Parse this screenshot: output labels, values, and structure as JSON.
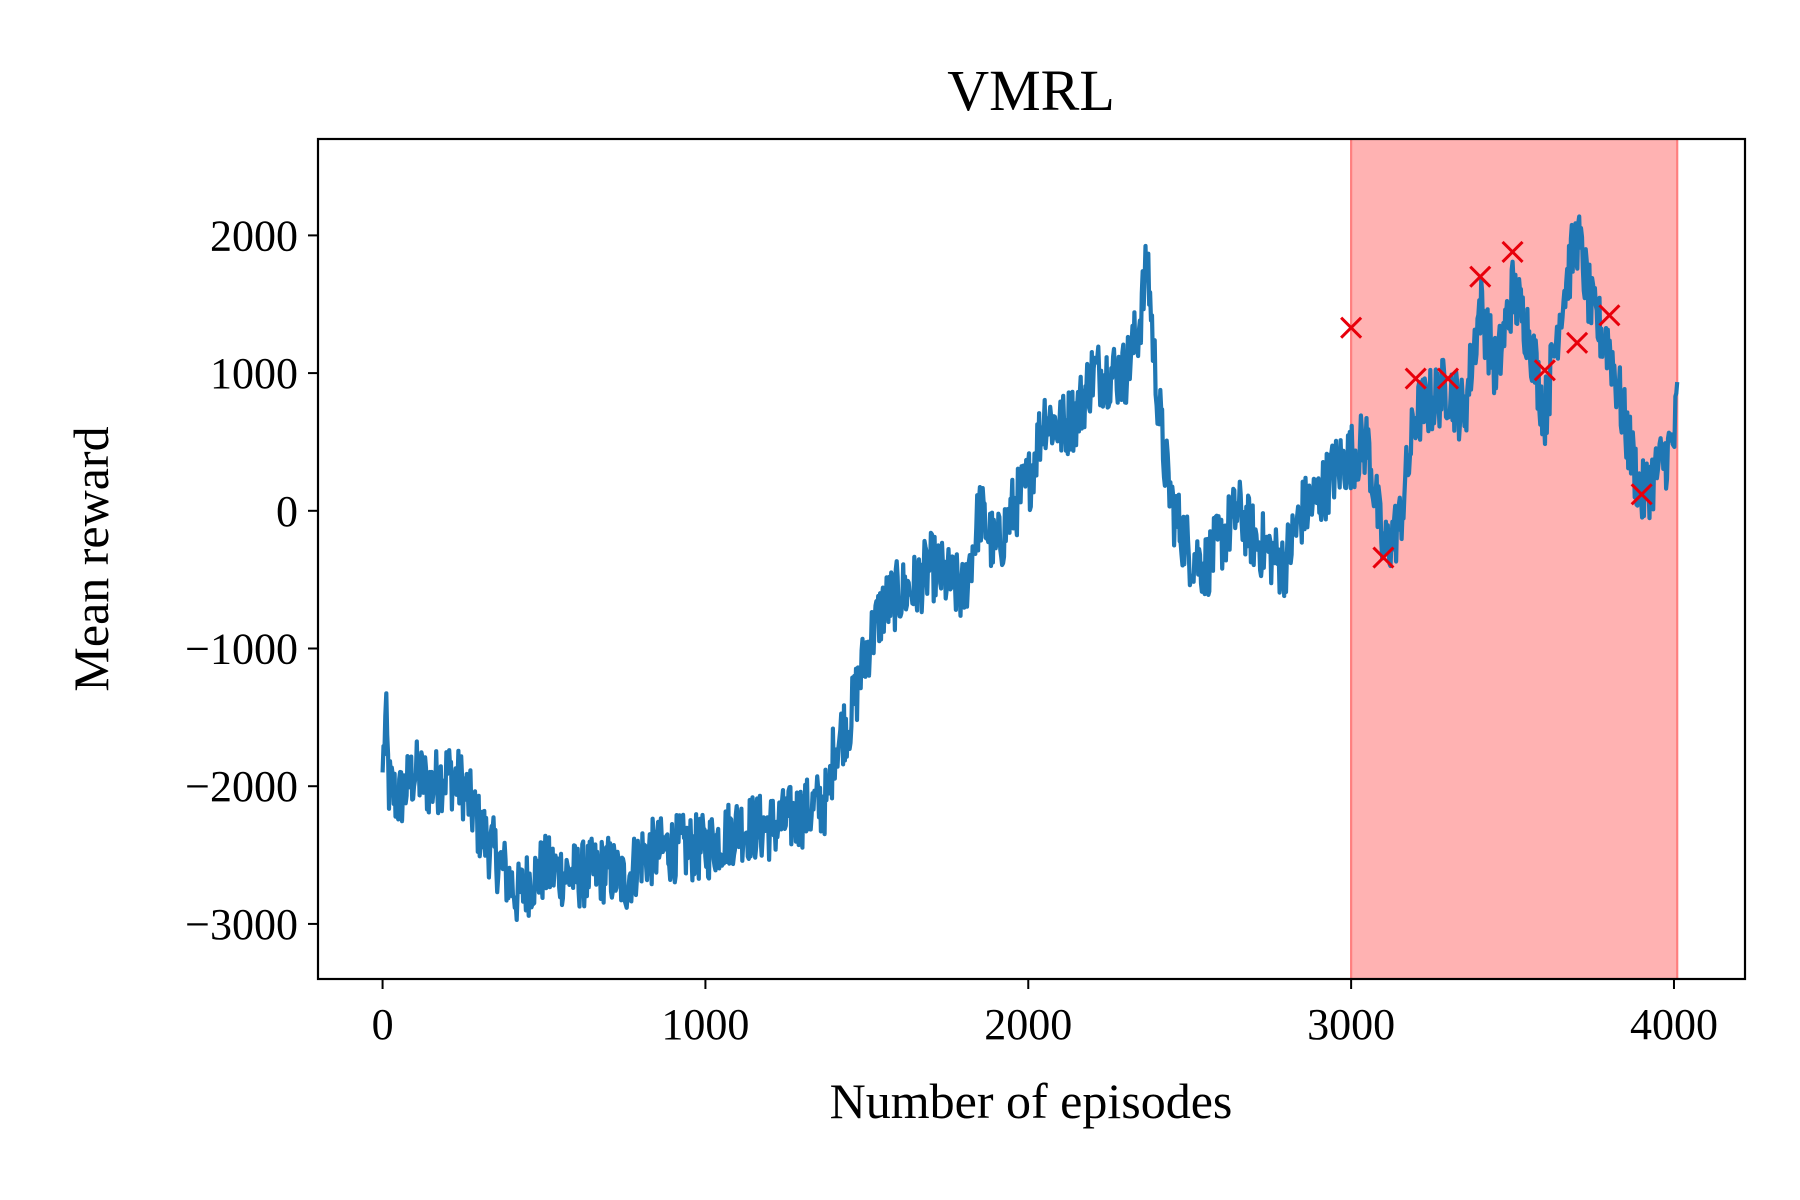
{
  "chart_data": {
    "type": "line",
    "title": "VMRL",
    "xlabel": "Number of episodes",
    "ylabel": "Mean reward",
    "xlim": [
      -200,
      4220
    ],
    "ylim": [
      -3400,
      2700
    ],
    "xticks": [
      0,
      1000,
      2000,
      3000,
      4000
    ],
    "xtick_labels": [
      "0",
      "1000",
      "2000",
      "3000",
      "4000"
    ],
    "yticks": [
      -3000,
      -2000,
      -1000,
      0,
      1000,
      2000
    ],
    "ytick_labels": [
      "−3000",
      "−2000",
      "−1000",
      "0",
      "1000",
      "2000"
    ],
    "grid": false,
    "colors": {
      "line": "#1f77b4",
      "marker": "#e8000b",
      "band": "#ff7f7f"
    },
    "highlight_band": {
      "x_start": 3000,
      "x_end": 4010
    },
    "series": [
      {
        "name": "mean reward",
        "anchors_x": [
          0,
          10,
          20,
          50,
          100,
          150,
          200,
          250,
          300,
          350,
          420,
          450,
          500,
          600,
          700,
          750,
          800,
          900,
          1000,
          1100,
          1200,
          1300,
          1380,
          1400,
          1450,
          1500,
          1550,
          1600,
          1650,
          1700,
          1750,
          1800,
          1850,
          1900,
          1950,
          2000,
          2050,
          2100,
          2150,
          2200,
          2250,
          2300,
          2340,
          2370,
          2390,
          2420,
          2450,
          2500,
          2550,
          2600,
          2650,
          2700,
          2750,
          2790,
          2850,
          2900,
          2950,
          3000,
          3050,
          3100,
          3150,
          3200,
          3250,
          3300,
          3350,
          3400,
          3450,
          3500,
          3550,
          3600,
          3650,
          3700,
          3750,
          3800,
          3850,
          3900,
          3950,
          4000,
          4010
        ],
        "anchors_y": [
          -1900,
          -1500,
          -2000,
          -2100,
          -1900,
          -2000,
          -1900,
          -2000,
          -2300,
          -2500,
          -2800,
          -2700,
          -2600,
          -2650,
          -2600,
          -2700,
          -2500,
          -2450,
          -2450,
          -2300,
          -2300,
          -2200,
          -2100,
          -1700,
          -1500,
          -1000,
          -700,
          -600,
          -550,
          -400,
          -500,
          -600,
          0,
          -300,
          0,
          200,
          700,
          600,
          700,
          1000,
          1000,
          1000,
          1300,
          1800,
          1100,
          400,
          0,
          -300,
          -400,
          -200,
          0,
          -200,
          -300,
          -400,
          0,
          100,
          300,
          400,
          500,
          -300,
          -100,
          700,
          800,
          900,
          700,
          1500,
          1000,
          1600,
          1300,
          700,
          1500,
          2000,
          1400,
          1200,
          600,
          100,
          300,
          500,
          800
        ],
        "noise_amplitude": 250,
        "points": 1400
      }
    ],
    "markers": {
      "symbol": "x",
      "x": [
        3000,
        3100,
        3200,
        3300,
        3400,
        3500,
        3600,
        3700,
        3800,
        3900
      ],
      "y": [
        1330,
        -340,
        960,
        960,
        1700,
        1880,
        1020,
        1220,
        1420,
        120
      ]
    }
  }
}
